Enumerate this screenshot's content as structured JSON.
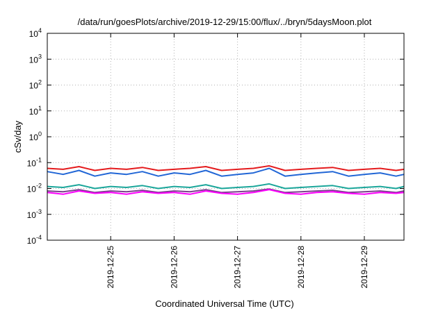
{
  "chart_data": {
    "type": "line",
    "title": "/data/run/goesPlots/archive/2019-12-29/15:00/flux/../bryn/5daysMoon.plot",
    "xlabel": "Coordinated Universal Time (UTC)",
    "ylabel": "cSv/day",
    "yscale": "log",
    "ylim": [
      0.0001,
      10000
    ],
    "xlim": [
      "2019-12-24T00:00",
      "2019-12-29T15:00"
    ],
    "grid": true,
    "y_ticks": [
      {
        "base": "10",
        "exp": "-4",
        "value": 0.0001
      },
      {
        "base": "10",
        "exp": "-3",
        "value": 0.001
      },
      {
        "base": "10",
        "exp": "-2",
        "value": 0.01
      },
      {
        "base": "10",
        "exp": "-1",
        "value": 0.1
      },
      {
        "base": "10",
        "exp": "0",
        "value": 1
      },
      {
        "base": "10",
        "exp": "1",
        "value": 10
      },
      {
        "base": "10",
        "exp": "2",
        "value": 100
      },
      {
        "base": "10",
        "exp": "3",
        "value": 1000
      },
      {
        "base": "10",
        "exp": "4",
        "value": 10000
      }
    ],
    "x_ticks": [
      {
        "label": "2019-12-25",
        "value": "2019-12-25T00:00"
      },
      {
        "label": "2019-12-26",
        "value": "2019-12-26T00:00"
      },
      {
        "label": "2019-12-27",
        "value": "2019-12-27T00:00"
      },
      {
        "label": "2019-12-28",
        "value": "2019-12-28T00:00"
      },
      {
        "label": "2019-12-29",
        "value": "2019-12-29T00:00"
      }
    ],
    "x": [
      "2019-12-24T00:00",
      "2019-12-24T06:00",
      "2019-12-24T12:00",
      "2019-12-24T18:00",
      "2019-12-25T00:00",
      "2019-12-25T06:00",
      "2019-12-25T12:00",
      "2019-12-25T18:00",
      "2019-12-26T00:00",
      "2019-12-26T06:00",
      "2019-12-26T12:00",
      "2019-12-26T18:00",
      "2019-12-27T00:00",
      "2019-12-27T06:00",
      "2019-12-27T12:00",
      "2019-12-27T18:00",
      "2019-12-28T00:00",
      "2019-12-28T06:00",
      "2019-12-28T12:00",
      "2019-12-28T18:00",
      "2019-12-29T00:00",
      "2019-12-29T06:00",
      "2019-12-29T12:00",
      "2019-12-29T15:00"
    ],
    "series": [
      {
        "color": "#e41a1c",
        "values": [
          0.06,
          0.055,
          0.07,
          0.05,
          0.06,
          0.055,
          0.065,
          0.05,
          0.055,
          0.06,
          0.07,
          0.05,
          0.055,
          0.06,
          0.075,
          0.05,
          0.055,
          0.06,
          0.065,
          0.05,
          0.055,
          0.06,
          0.05,
          0.055
        ]
      },
      {
        "color": "#2166d6",
        "values": [
          0.045,
          0.035,
          0.05,
          0.03,
          0.04,
          0.035,
          0.045,
          0.03,
          0.04,
          0.035,
          0.05,
          0.03,
          0.035,
          0.04,
          0.06,
          0.03,
          0.035,
          0.04,
          0.045,
          0.03,
          0.035,
          0.04,
          0.03,
          0.035
        ]
      },
      {
        "color": "#1aa69a",
        "values": [
          0.012,
          0.011,
          0.014,
          0.01,
          0.012,
          0.011,
          0.013,
          0.01,
          0.012,
          0.011,
          0.014,
          0.01,
          0.011,
          0.012,
          0.015,
          0.01,
          0.011,
          0.012,
          0.013,
          0.01,
          0.011,
          0.012,
          0.01,
          0.012
        ]
      },
      {
        "color": "#7b3f8c",
        "values": [
          0.008,
          0.0075,
          0.009,
          0.007,
          0.008,
          0.0075,
          0.0085,
          0.007,
          0.008,
          0.0075,
          0.009,
          0.007,
          0.0075,
          0.008,
          0.0095,
          0.007,
          0.0075,
          0.008,
          0.0085,
          0.007,
          0.0075,
          0.008,
          0.007,
          0.008
        ]
      },
      {
        "color": "#ff00ff",
        "values": [
          0.007,
          0.006,
          0.008,
          0.0065,
          0.007,
          0.006,
          0.0075,
          0.0065,
          0.007,
          0.006,
          0.008,
          0.0065,
          0.006,
          0.007,
          0.009,
          0.0065,
          0.006,
          0.007,
          0.0075,
          0.0065,
          0.006,
          0.007,
          0.0065,
          0.007
        ]
      }
    ]
  }
}
